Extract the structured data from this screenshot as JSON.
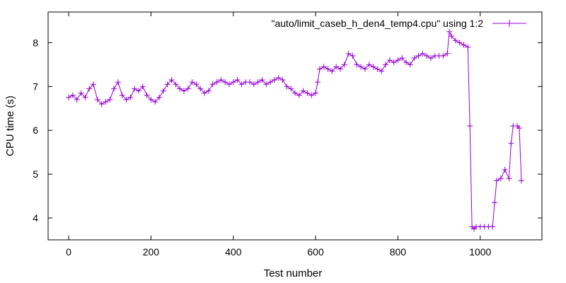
{
  "chart_data": {
    "type": "line",
    "xlabel": "Test number",
    "ylabel": "CPU time (s)",
    "xlim": [
      -50,
      1150
    ],
    "ylim": [
      3.5,
      8.7
    ],
    "x_ticks": [
      0,
      200,
      400,
      600,
      800,
      1000
    ],
    "y_ticks": [
      4,
      5,
      6,
      7,
      8
    ],
    "x_tick_labels": [
      "0",
      "200",
      "400",
      "600",
      "800",
      "1000"
    ],
    "y_tick_labels": [
      "4",
      "5",
      "6",
      "7",
      "8"
    ],
    "grid": false,
    "legend_position": "top-right",
    "series": [
      {
        "name": "\"auto/limit_caseb_h_den4_temp4.cpu\" using 1:2",
        "color": "#9400d3",
        "marker": "plus",
        "x": [
          0,
          10,
          20,
          30,
          40,
          50,
          60,
          70,
          80,
          90,
          100,
          110,
          120,
          130,
          140,
          150,
          160,
          170,
          180,
          190,
          200,
          210,
          220,
          230,
          240,
          250,
          260,
          270,
          280,
          290,
          300,
          310,
          320,
          330,
          340,
          350,
          360,
          370,
          380,
          390,
          400,
          410,
          420,
          430,
          440,
          450,
          460,
          470,
          480,
          490,
          500,
          510,
          520,
          530,
          540,
          550,
          560,
          570,
          580,
          590,
          600,
          605,
          610,
          620,
          630,
          640,
          650,
          660,
          670,
          680,
          690,
          700,
          710,
          720,
          730,
          740,
          750,
          760,
          770,
          780,
          790,
          800,
          810,
          820,
          830,
          840,
          850,
          860,
          870,
          880,
          890,
          900,
          910,
          920,
          925,
          930,
          940,
          950,
          960,
          970,
          975,
          980,
          985,
          990,
          1000,
          1010,
          1020,
          1030,
          1035,
          1040,
          1050,
          1060,
          1070,
          1075,
          1080,
          1090,
          1095,
          1100
        ],
        "y": [
          6.75,
          6.8,
          6.7,
          6.85,
          6.75,
          6.95,
          7.05,
          6.7,
          6.6,
          6.65,
          6.7,
          6.95,
          7.1,
          6.8,
          6.7,
          6.75,
          6.95,
          6.9,
          7.0,
          6.8,
          6.7,
          6.65,
          6.75,
          6.9,
          7.05,
          7.15,
          7.05,
          6.95,
          6.9,
          6.95,
          7.1,
          7.05,
          6.95,
          6.85,
          6.9,
          7.05,
          7.1,
          7.15,
          7.1,
          7.05,
          7.1,
          7.15,
          7.05,
          7.1,
          7.1,
          7.05,
          7.1,
          7.15,
          7.05,
          7.1,
          7.15,
          7.2,
          7.15,
          7.0,
          6.95,
          6.85,
          6.8,
          6.9,
          6.85,
          6.8,
          6.85,
          7.1,
          7.4,
          7.45,
          7.4,
          7.35,
          7.45,
          7.4,
          7.5,
          7.75,
          7.7,
          7.5,
          7.45,
          7.4,
          7.5,
          7.45,
          7.4,
          7.35,
          7.5,
          7.6,
          7.55,
          7.6,
          7.65,
          7.55,
          7.5,
          7.65,
          7.7,
          7.75,
          7.7,
          7.65,
          7.7,
          7.7,
          7.7,
          7.75,
          8.25,
          8.15,
          8.05,
          8.0,
          7.95,
          7.9,
          6.1,
          3.8,
          3.75,
          3.8,
          3.8,
          3.8,
          3.8,
          3.8,
          4.35,
          4.85,
          4.9,
          5.1,
          4.9,
          5.7,
          6.1,
          6.1,
          6.05,
          4.85
        ]
      }
    ]
  }
}
